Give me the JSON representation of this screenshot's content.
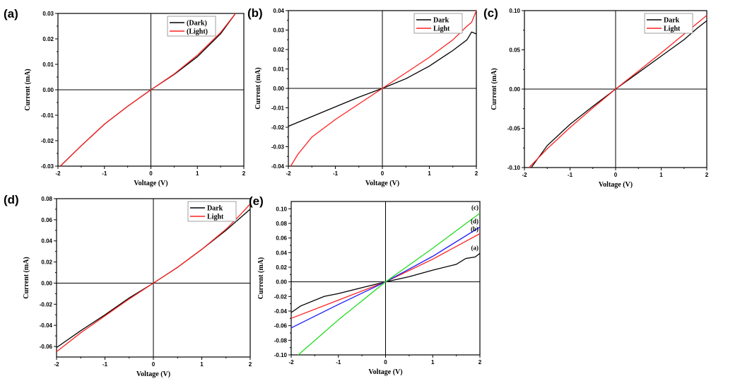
{
  "chart_data": [
    {
      "panel_label": "(a)",
      "type": "line",
      "xlabel": "Voltage (V)",
      "ylabel": "Current (mA)",
      "xlim": [
        -2,
        2
      ],
      "ylim": [
        -0.03,
        0.03
      ],
      "xticks": [
        -2,
        -1,
        0,
        1,
        2
      ],
      "yticks": [
        -0.03,
        -0.02,
        -0.01,
        0.0,
        0.01,
        0.02,
        0.03
      ],
      "ydec": 2,
      "legend": "top-right",
      "legend_box": true,
      "series": [
        {
          "name": "(Dark)",
          "color": "#000000",
          "x": [
            -1.95,
            -1.5,
            -1,
            -0.5,
            0,
            0.5,
            1,
            1.5,
            1.82
          ],
          "y": [
            -0.03,
            -0.022,
            -0.0135,
            -0.0065,
            0,
            0.006,
            0.013,
            0.022,
            0.03
          ]
        },
        {
          "name": "(Light)",
          "color": "#ff2020",
          "x": [
            -1.95,
            -1.5,
            -1,
            -0.5,
            0,
            0.5,
            1,
            1.5,
            1.82
          ],
          "y": [
            -0.03,
            -0.022,
            -0.0135,
            -0.0065,
            0,
            0.0062,
            0.0136,
            0.0225,
            0.03
          ]
        }
      ]
    },
    {
      "panel_label": "(b)",
      "type": "line",
      "xlabel": "Voltage (V)",
      "ylabel": "Current (mA)",
      "xlim": [
        -2,
        2
      ],
      "ylim": [
        -0.04,
        0.04
      ],
      "xticks": [
        -2,
        -1,
        0,
        1,
        2
      ],
      "yticks": [
        -0.04,
        -0.03,
        -0.02,
        -0.01,
        0.0,
        0.01,
        0.02,
        0.03,
        0.04
      ],
      "ydec": 2,
      "legend": "top-right",
      "legend_box": true,
      "series": [
        {
          "name": "Dark",
          "color": "#000000",
          "x": [
            -2,
            -1.8,
            -1.5,
            -1,
            -0.5,
            0,
            0.5,
            1,
            1.5,
            1.8,
            1.9,
            2
          ],
          "y": [
            -0.0195,
            -0.0175,
            -0.0145,
            -0.0095,
            -0.0045,
            0,
            0.005,
            0.0115,
            0.0195,
            0.025,
            0.029,
            0.028
          ]
        },
        {
          "name": "Light",
          "color": "#ff2020",
          "x": [
            -1.95,
            -1.8,
            -1.5,
            -1,
            -0.5,
            0,
            0.5,
            1,
            1.5,
            1.8,
            1.9,
            2
          ],
          "y": [
            -0.04,
            -0.034,
            -0.025,
            -0.016,
            -0.008,
            0,
            0.008,
            0.016,
            0.025,
            0.032,
            0.034,
            0.04
          ]
        }
      ]
    },
    {
      "panel_label": "(c)",
      "type": "line",
      "xlabel": "Voltage (V)",
      "ylabel": "Current (mA)",
      "xlim": [
        -2,
        2
      ],
      "ylim": [
        -0.1,
        0.1
      ],
      "xticks": [
        -2,
        -1,
        0,
        1,
        2
      ],
      "yticks": [
        -0.1,
        -0.05,
        0.0,
        0.05,
        0.1
      ],
      "ydec": 2,
      "legend": "top-right",
      "legend_box": true,
      "series": [
        {
          "name": "Dark",
          "color": "#000000",
          "x": [
            -1.85,
            -1.5,
            -1,
            -0.5,
            0,
            0.5,
            1,
            1.5,
            1.8,
            2
          ],
          "y": [
            -0.1,
            -0.072,
            -0.045,
            -0.022,
            0,
            0.021,
            0.042,
            0.063,
            0.078,
            0.087
          ]
        },
        {
          "name": "Light",
          "color": "#ff2020",
          "x": [
            -1.9,
            -1.5,
            -1,
            -0.5,
            0,
            0.5,
            1,
            1.5,
            2
          ],
          "y": [
            -0.1,
            -0.076,
            -0.049,
            -0.024,
            0,
            0.023,
            0.046,
            0.07,
            0.094
          ]
        }
      ]
    },
    {
      "panel_label": "(d)",
      "type": "line",
      "xlabel": "Voltage (V)",
      "ylabel": "Current (mA)",
      "xlim": [
        -2,
        2
      ],
      "ylim": [
        -0.07,
        0.08
      ],
      "xticks": [
        -2,
        -1,
        0,
        1,
        2
      ],
      "yticks": [
        -0.06,
        -0.04,
        -0.02,
        0.0,
        0.02,
        0.04,
        0.06,
        0.08
      ],
      "ydec": 2,
      "legend": "top-right",
      "legend_box": true,
      "series": [
        {
          "name": "Dark",
          "color": "#000000",
          "x": [
            -2,
            -1.5,
            -1,
            -0.5,
            0,
            0.5,
            1,
            1.5,
            2
          ],
          "y": [
            -0.061,
            -0.045,
            -0.03,
            -0.014,
            0,
            0.015,
            0.032,
            0.05,
            0.07
          ]
        },
        {
          "name": "Light",
          "color": "#ff2020",
          "x": [
            -2,
            -1.5,
            -1,
            -0.5,
            0,
            0.5,
            1,
            1.5,
            1.8,
            2
          ],
          "y": [
            -0.065,
            -0.047,
            -0.031,
            -0.015,
            0,
            0.015,
            0.032,
            0.051,
            0.065,
            0.075
          ]
        }
      ]
    },
    {
      "panel_label": "(e)",
      "type": "line",
      "xlabel": "Voltage (V)",
      "ylabel": "Current (mA)",
      "xlim": [
        -2,
        2
      ],
      "ylim": [
        -0.1,
        0.11
      ],
      "xticks": [
        -2,
        -1,
        0,
        1,
        2
      ],
      "yticks": [
        -0.1,
        -0.08,
        -0.06,
        -0.04,
        -0.02,
        0.0,
        0.02,
        0.04,
        0.06,
        0.08,
        0.1
      ],
      "ydec": 2,
      "legend": "end-labels",
      "legend_box": false,
      "series": [
        {
          "name": "(a)",
          "color": "#000000",
          "x": [
            -2,
            -1.8,
            -1.3,
            -1,
            -0.5,
            0,
            0.5,
            1,
            1.5,
            1.7,
            1.9,
            2
          ],
          "y": [
            -0.042,
            -0.033,
            -0.02,
            -0.016,
            -0.008,
            0,
            0.007,
            0.016,
            0.024,
            0.032,
            0.034,
            0.039
          ]
        },
        {
          "name": "(b)",
          "color": "#ff2020",
          "x": [
            -2,
            -1,
            0,
            1,
            2
          ],
          "y": [
            -0.05,
            -0.025,
            0,
            0.031,
            0.066
          ]
        },
        {
          "name": "(d)",
          "color": "#1a1aff",
          "x": [
            -2,
            -1,
            0,
            1,
            2
          ],
          "y": [
            -0.063,
            -0.031,
            0,
            0.035,
            0.075
          ]
        },
        {
          "name": "(c)",
          "color": "#22dd22",
          "x": [
            -1.85,
            -1,
            0,
            1,
            2
          ],
          "y": [
            -0.1,
            -0.052,
            0,
            0.046,
            0.094
          ]
        }
      ]
    }
  ]
}
